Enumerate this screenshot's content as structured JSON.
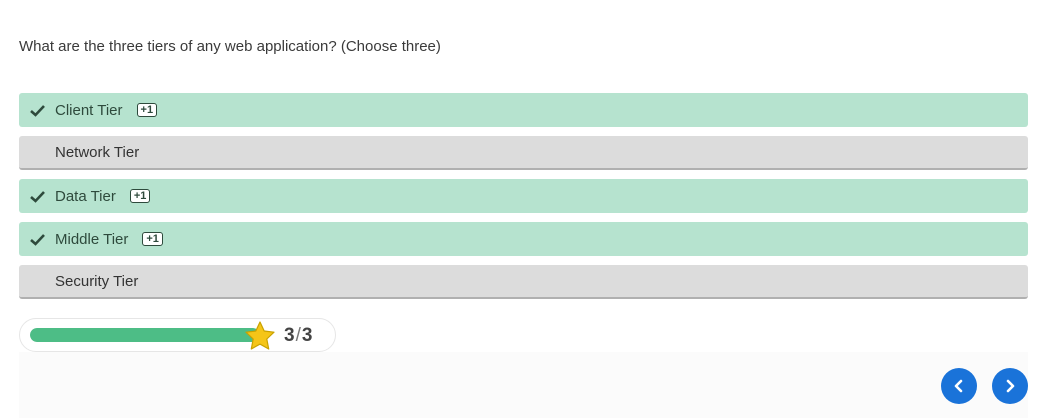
{
  "question": "What are the three tiers of any web application? (Choose three)",
  "options": [
    {
      "label": "Client Tier",
      "selected_correct": true,
      "badge": "+1"
    },
    {
      "label": "Network Tier",
      "selected_correct": false,
      "badge": ""
    },
    {
      "label": "Data Tier",
      "selected_correct": true,
      "badge": "+1"
    },
    {
      "label": "Middle Tier",
      "selected_correct": true,
      "badge": "+1"
    },
    {
      "label": "Security Tier",
      "selected_correct": false,
      "badge": ""
    }
  ],
  "score": {
    "earned": "3",
    "separator": "/",
    "total": "3",
    "progress_fraction": 1.0
  },
  "icons": {
    "check": "check-icon",
    "star": "star-icon",
    "prev": "chevron-left-icon",
    "next": "chevron-right-icon"
  },
  "colors": {
    "correct_bg": "#b6e3cf",
    "neutral_bg": "#dcdcdc",
    "progress_fill": "#4dbd86",
    "nav_button": "#1a73d9",
    "star": "#f5c518"
  }
}
